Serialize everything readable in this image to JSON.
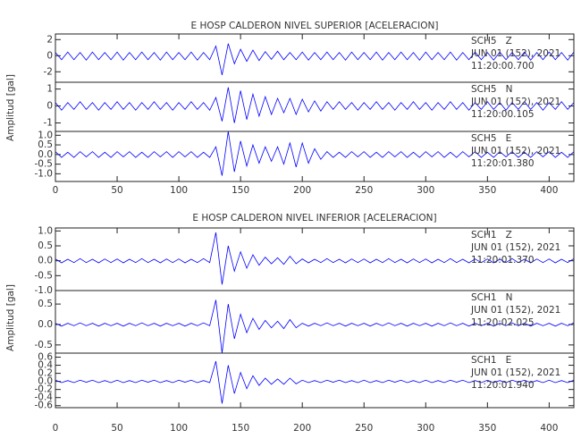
{
  "chart_data": [
    {
      "type": "seismogram",
      "title": "E HOSP CALDERON NIVEL SUPERIOR [ACELERACION]",
      "ylabel": "Amplitud [gal]",
      "xlim": [
        0,
        420
      ],
      "xticks": [
        0,
        50,
        100,
        150,
        200,
        250,
        300,
        350,
        400
      ],
      "x": [
        0,
        5,
        10,
        15,
        20,
        25,
        30,
        35,
        40,
        45,
        50,
        55,
        60,
        65,
        70,
        75,
        80,
        85,
        90,
        95,
        100,
        105,
        110,
        115,
        120,
        125,
        130,
        135,
        140,
        145,
        150,
        155,
        160,
        165,
        170,
        175,
        180,
        185,
        190,
        195,
        200,
        205,
        210,
        215,
        220,
        225,
        230,
        235,
        240,
        245,
        250,
        255,
        260,
        265,
        270,
        275,
        280,
        285,
        290,
        295,
        300,
        305,
        310,
        315,
        320,
        325,
        330,
        335,
        340,
        345,
        350,
        355,
        360,
        365,
        370,
        375,
        380,
        385,
        390,
        395,
        400,
        405,
        410,
        415,
        420
      ],
      "panels": [
        {
          "label": [
            "SCH5   Z",
            "JUN 01 (152), 2021",
            "11:20:00.700"
          ],
          "ylim": [
            -3.3,
            2.7
          ],
          "yticks": [
            -2,
            0,
            2
          ],
          "color": "#0000ff",
          "values": [
            0.4,
            -0.5,
            0.45,
            -0.5,
            0.4,
            -0.55,
            0.45,
            -0.5,
            0.4,
            -0.5,
            0.45,
            -0.55,
            0.4,
            -0.5,
            0.45,
            -0.5,
            0.4,
            -0.55,
            0.45,
            -0.5,
            0.4,
            -0.5,
            0.45,
            -0.55,
            0.4,
            -0.5,
            1.2,
            -2.4,
            1.5,
            -1.0,
            0.8,
            -0.7,
            0.7,
            -0.6,
            0.5,
            -0.45,
            0.55,
            -0.5,
            0.4,
            -0.5,
            0.45,
            -0.55,
            0.4,
            -0.5,
            0.45,
            -0.5,
            0.4,
            -0.55,
            0.45,
            -0.5,
            0.4,
            -0.5,
            0.45,
            -0.55,
            0.4,
            -0.5,
            0.45,
            -0.5,
            0.4,
            -0.55,
            0.45,
            -0.5,
            0.4,
            -0.5,
            0.45,
            -0.55,
            0.4,
            -0.5,
            0.45,
            -0.5,
            0.4,
            -0.55,
            0.45,
            -0.5,
            0.4,
            -0.5,
            0.45,
            -0.55,
            0.4,
            -0.5,
            0.45,
            -0.5,
            0.4,
            -0.55,
            0.45
          ]
        },
        {
          "label": [
            "SCH5   N",
            "JUN 01 (152), 2021",
            "11:20:00.105"
          ],
          "ylim": [
            -1.5,
            1.4
          ],
          "yticks": [
            -1,
            0,
            1
          ],
          "color": "#0000ff",
          "values": [
            0.2,
            -0.25,
            0.2,
            -0.2,
            0.25,
            -0.2,
            0.2,
            -0.25,
            0.2,
            -0.2,
            0.25,
            -0.2,
            0.2,
            -0.25,
            0.2,
            -0.2,
            0.25,
            -0.2,
            0.2,
            -0.25,
            0.2,
            -0.2,
            0.25,
            -0.2,
            0.2,
            -0.25,
            0.5,
            -0.9,
            1.1,
            -1.0,
            0.9,
            -0.8,
            0.7,
            -0.6,
            0.55,
            -0.5,
            0.45,
            -0.4,
            0.45,
            -0.5,
            0.4,
            -0.35,
            0.3,
            -0.3,
            0.25,
            -0.2,
            0.25,
            -0.2,
            0.2,
            -0.25,
            0.2,
            -0.2,
            0.25,
            -0.2,
            0.2,
            -0.25,
            0.2,
            -0.2,
            0.25,
            -0.2,
            0.2,
            -0.25,
            0.2,
            -0.2,
            0.25,
            -0.2,
            0.2,
            -0.25,
            0.2,
            -0.2,
            0.25,
            -0.2,
            0.2,
            -0.25,
            0.2,
            -0.2,
            0.25,
            -0.2,
            0.2,
            -0.25,
            0.2,
            -0.2,
            0.25,
            -0.2,
            0.2
          ]
        },
        {
          "label": [
            "SCH5   E",
            "JUN 01 (152), 2021",
            "11:20:01.380"
          ],
          "ylim": [
            -1.4,
            1.2
          ],
          "yticks": [
            {
              "value": 1,
              "label": "1.0"
            },
            0.5,
            {
              "value": 0,
              "label": "0.0"
            },
            -0.5,
            {
              "value": -1,
              "label": "-1.0"
            }
          ],
          "color": "#0000ff",
          "values": [
            0.15,
            -0.15,
            0.12,
            -0.15,
            0.15,
            -0.12,
            0.15,
            -0.15,
            0.12,
            -0.15,
            0.15,
            -0.12,
            0.15,
            -0.15,
            0.12,
            -0.15,
            0.15,
            -0.12,
            0.15,
            -0.15,
            0.15,
            -0.12,
            0.15,
            -0.15,
            0.12,
            -0.15,
            0.4,
            -1.1,
            1.2,
            -0.9,
            0.7,
            -0.6,
            0.5,
            -0.45,
            0.4,
            -0.35,
            0.4,
            -0.5,
            0.6,
            -0.65,
            0.6,
            -0.45,
            0.3,
            -0.25,
            0.15,
            -0.15,
            0.12,
            -0.15,
            0.15,
            -0.12,
            0.15,
            -0.15,
            0.12,
            -0.15,
            0.15,
            -0.12,
            0.15,
            -0.15,
            0.12,
            -0.15,
            0.15,
            -0.12,
            0.15,
            -0.15,
            0.12,
            -0.15,
            0.15,
            -0.12,
            0.15,
            -0.15,
            0.12,
            -0.15,
            0.15,
            -0.12,
            0.15,
            -0.15,
            0.12,
            -0.15,
            0.15,
            -0.12,
            0.15,
            -0.15,
            0.12,
            -0.15,
            0.15
          ]
        }
      ]
    },
    {
      "type": "seismogram",
      "title": "E HOSP CALDERON NIVEL INFERIOR [ACELERACION]",
      "ylabel": "Amplitud [gal]",
      "xlim": [
        0,
        420
      ],
      "xticks": [
        0,
        50,
        100,
        150,
        200,
        250,
        300,
        350,
        400
      ],
      "x": [
        0,
        5,
        10,
        15,
        20,
        25,
        30,
        35,
        40,
        45,
        50,
        55,
        60,
        65,
        70,
        75,
        80,
        85,
        90,
        95,
        100,
        105,
        110,
        115,
        120,
        125,
        130,
        135,
        140,
        145,
        150,
        155,
        160,
        165,
        170,
        175,
        180,
        185,
        190,
        195,
        200,
        205,
        210,
        215,
        220,
        225,
        230,
        235,
        240,
        245,
        250,
        255,
        260,
        265,
        270,
        275,
        280,
        285,
        290,
        295,
        300,
        305,
        310,
        315,
        320,
        325,
        330,
        335,
        340,
        345,
        350,
        355,
        360,
        365,
        370,
        375,
        380,
        385,
        390,
        395,
        400,
        405,
        410,
        415,
        420
      ],
      "panels": [
        {
          "label": [
            "SCH1   Z",
            "JUN 01 (152), 2021",
            "11:20:01.370"
          ],
          "ylim": [
            -1.0,
            1.1
          ],
          "yticks": [
            {
              "value": 1,
              "label": "1.0"
            },
            0.5,
            {
              "value": 0,
              "label": "0.0"
            },
            -0.5,
            {
              "value": -1,
              "label": "-1.0"
            }
          ],
          "color": "#0000ff",
          "values": [
            0.06,
            -0.07,
            0.05,
            -0.06,
            0.07,
            -0.06,
            0.05,
            -0.07,
            0.06,
            -0.06,
            0.06,
            -0.07,
            0.05,
            -0.06,
            0.07,
            -0.06,
            0.05,
            -0.07,
            0.06,
            -0.06,
            0.06,
            -0.07,
            0.05,
            -0.06,
            0.07,
            -0.06,
            0.95,
            -0.8,
            0.5,
            -0.35,
            0.3,
            -0.25,
            0.2,
            -0.15,
            0.12,
            -0.1,
            0.1,
            -0.12,
            0.15,
            -0.1,
            0.06,
            -0.07,
            0.05,
            -0.06,
            0.07,
            -0.06,
            0.05,
            -0.07,
            0.06,
            -0.06,
            0.06,
            -0.07,
            0.05,
            -0.06,
            0.07,
            -0.06,
            0.05,
            -0.07,
            0.06,
            -0.06,
            0.06,
            -0.07,
            0.05,
            -0.06,
            0.07,
            -0.06,
            0.05,
            -0.07,
            0.06,
            -0.06,
            0.06,
            -0.07,
            0.05,
            -0.06,
            0.07,
            -0.06,
            0.05,
            -0.07,
            0.06,
            -0.06,
            0.06,
            -0.07,
            0.05,
            -0.06,
            0.07
          ]
        },
        {
          "label": [
            "SCH1   N",
            "JUN 01 (152), 2021",
            "11:20:02.025"
          ],
          "ylim": [
            -0.7,
            0.83
          ],
          "yticks": [
            0.5,
            {
              "value": 0,
              "label": "0.0"
            },
            -0.5
          ],
          "color": "#0000ff",
          "values": [
            0.03,
            -0.04,
            0.03,
            -0.03,
            0.04,
            -0.03,
            0.03,
            -0.04,
            0.03,
            -0.03,
            0.03,
            -0.04,
            0.03,
            -0.03,
            0.04,
            -0.03,
            0.03,
            -0.04,
            0.03,
            -0.03,
            0.03,
            -0.04,
            0.03,
            -0.03,
            0.04,
            -0.03,
            0.6,
            -0.7,
            0.5,
            -0.35,
            0.25,
            -0.2,
            0.15,
            -0.12,
            0.1,
            -0.08,
            0.08,
            -0.1,
            0.12,
            -0.08,
            0.03,
            -0.04,
            0.03,
            -0.03,
            0.04,
            -0.03,
            0.03,
            -0.04,
            0.03,
            -0.03,
            0.03,
            -0.04,
            0.03,
            -0.03,
            0.04,
            -0.03,
            0.03,
            -0.04,
            0.03,
            -0.03,
            0.03,
            -0.04,
            0.03,
            -0.03,
            0.04,
            -0.03,
            0.03,
            -0.04,
            0.03,
            -0.03,
            0.03,
            -0.04,
            0.03,
            -0.03,
            0.04,
            -0.03,
            0.03,
            -0.04,
            0.03,
            -0.03,
            0.03,
            -0.04,
            0.03,
            -0.03,
            0.04
          ]
        },
        {
          "label": [
            "SCH1   E",
            "JUN 01 (152), 2021",
            "11:20:01.940"
          ],
          "ylim": [
            -0.65,
            0.7
          ],
          "yticks": [
            0.6,
            0.4,
            0.2,
            {
              "value": 0,
              "label": "0.0"
            },
            -0.2,
            -0.4,
            -0.6
          ],
          "color": "#0000ff",
          "values": [
            0.03,
            -0.03,
            0.02,
            -0.03,
            0.03,
            -0.02,
            0.03,
            -0.03,
            0.02,
            -0.03,
            0.03,
            -0.03,
            0.02,
            -0.03,
            0.03,
            -0.02,
            0.03,
            -0.03,
            0.02,
            -0.03,
            0.03,
            -0.02,
            0.03,
            -0.03,
            0.02,
            -0.03,
            0.5,
            -0.55,
            0.4,
            -0.3,
            0.22,
            -0.18,
            0.14,
            -0.1,
            0.08,
            -0.07,
            0.06,
            -0.07,
            0.08,
            -0.06,
            0.03,
            -0.03,
            0.02,
            -0.03,
            0.03,
            -0.02,
            0.03,
            -0.03,
            0.02,
            -0.03,
            0.03,
            -0.03,
            0.02,
            -0.03,
            0.03,
            -0.02,
            0.03,
            -0.03,
            0.02,
            -0.03,
            0.03,
            -0.03,
            0.02,
            -0.03,
            0.03,
            -0.02,
            0.03,
            -0.03,
            0.02,
            -0.03,
            0.03,
            -0.03,
            0.02,
            -0.03,
            0.03,
            -0.02,
            0.03,
            -0.03,
            0.02,
            -0.03,
            0.03,
            -0.03,
            0.02,
            -0.03,
            0.03
          ]
        }
      ]
    }
  ]
}
